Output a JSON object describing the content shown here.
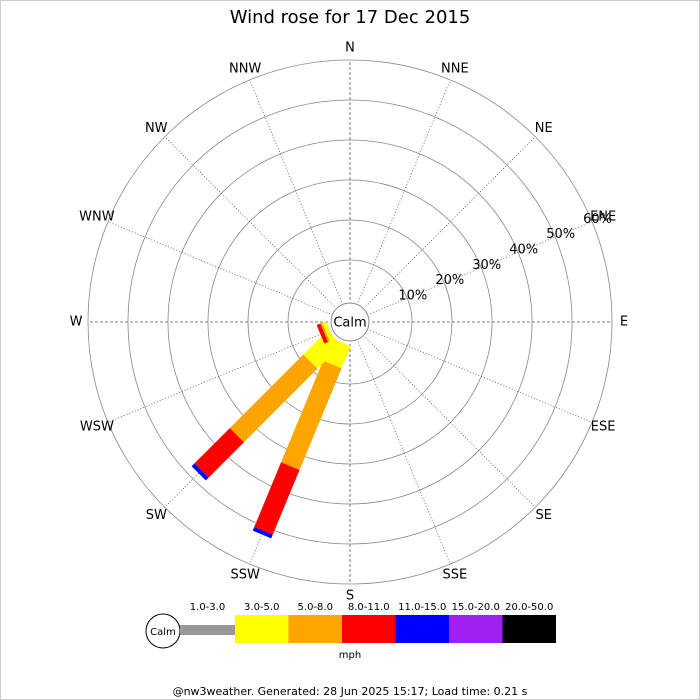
{
  "chart_data": {
    "type": "windrose",
    "title": "Wind rose for 17 Dec 2015",
    "categories": [
      "N",
      "NNE",
      "NE",
      "ENE",
      "E",
      "ESE",
      "SE",
      "SSE",
      "S",
      "SSW",
      "SW",
      "WSW",
      "W",
      "WNW",
      "NW",
      "NNW"
    ],
    "calm_label": "Calm",
    "rlim": [
      0,
      60
    ],
    "rticks": [
      {
        "value": 10,
        "label": "10%"
      },
      {
        "value": 20,
        "label": "20%"
      },
      {
        "value": 30,
        "label": "30%"
      },
      {
        "value": 40,
        "label": "40%"
      },
      {
        "value": 50,
        "label": "50%"
      },
      {
        "value": 60,
        "label": "60%"
      }
    ],
    "series": [
      {
        "name": "1.0-3.0",
        "color": "#999999",
        "values": [
          0,
          0,
          0,
          0,
          0,
          0,
          0,
          0,
          0,
          0,
          0,
          0,
          0,
          0,
          0,
          0
        ]
      },
      {
        "name": "3.0-5.0",
        "color": "#ffff00",
        "values": [
          0,
          0,
          0,
          0,
          0,
          0,
          0,
          0,
          0,
          6,
          8.5,
          1,
          0,
          0,
          0,
          0
        ]
      },
      {
        "name": "5.0-8.0",
        "color": "#ffa500",
        "values": [
          0,
          0,
          0,
          0,
          0,
          0,
          0,
          0,
          0,
          27.5,
          26,
          0.5,
          0,
          0,
          0,
          0
        ]
      },
      {
        "name": "8.0-11.0",
        "color": "#ff0000",
        "values": [
          0,
          0,
          0,
          0,
          0,
          0,
          0,
          0,
          0,
          17.5,
          12.5,
          1,
          0,
          0,
          0,
          0
        ]
      },
      {
        "name": "11.0-15.0",
        "color": "#0000ff",
        "values": [
          0,
          0,
          0,
          0,
          0,
          0,
          0,
          0,
          0,
          1,
          1,
          0,
          0,
          0,
          0,
          0
        ]
      },
      {
        "name": "15.0-20.0",
        "color": "#a020f0",
        "values": [
          0,
          0,
          0,
          0,
          0,
          0,
          0,
          0,
          0,
          0,
          0,
          0,
          0,
          0,
          0,
          0
        ]
      },
      {
        "name": "20.0-50.0",
        "color": "#000000",
        "values": [
          0,
          0,
          0,
          0,
          0,
          0,
          0,
          0,
          0,
          0,
          0,
          0,
          0,
          0,
          0,
          0
        ]
      }
    ],
    "unit": "mph",
    "footer": "@nw3weather. Generated: 28 Jun 2025 15:17; Load time: 0.21 s"
  }
}
